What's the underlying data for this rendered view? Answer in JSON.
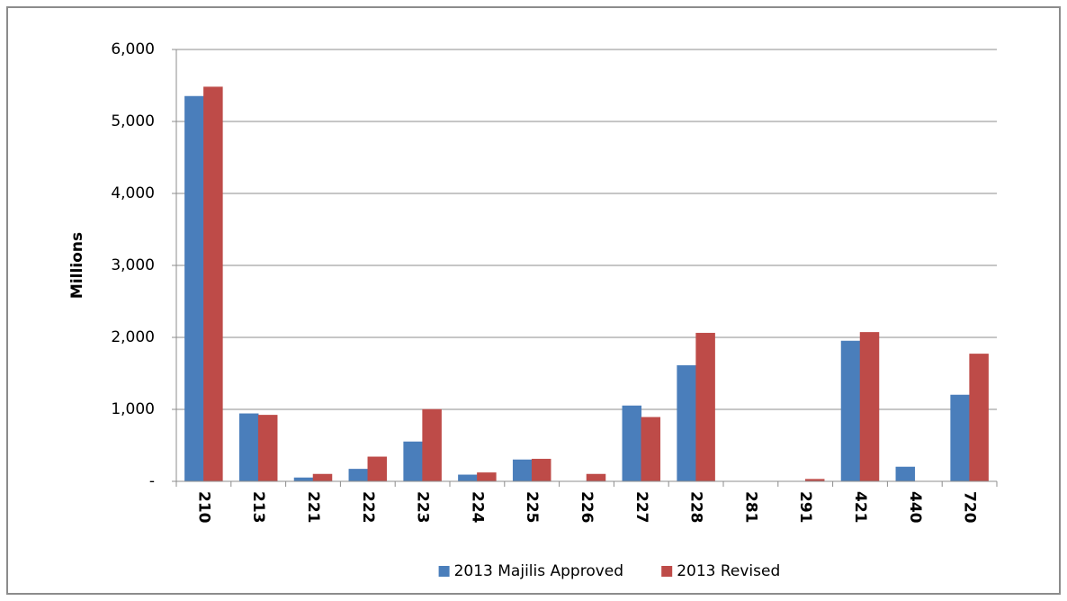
{
  "chart_data": {
    "type": "bar",
    "y_label": "Millions",
    "categories": [
      "210",
      "213",
      "221",
      "222",
      "223",
      "224",
      "225",
      "226",
      "227",
      "228",
      "281",
      "291",
      "421",
      "440",
      "720"
    ],
    "series": [
      {
        "name": "2013 Majilis Approved",
        "color": "#4a7ebb",
        "values": [
          5350,
          940,
          50,
          170,
          550,
          90,
          300,
          0,
          1050,
          1610,
          0,
          0,
          1950,
          200,
          1200
        ]
      },
      {
        "name": "2013 Revised",
        "color": "#be4b48",
        "values": [
          5480,
          920,
          100,
          340,
          1000,
          120,
          310,
          100,
          890,
          2060,
          0,
          30,
          2070,
          0,
          1770
        ]
      }
    ],
    "ylim": [
      0,
      6000
    ],
    "yticks": [
      {
        "value": 0,
        "label": "-"
      },
      {
        "value": 1000,
        "label": "1,000"
      },
      {
        "value": 2000,
        "label": "2,000"
      },
      {
        "value": 3000,
        "label": "3,000"
      },
      {
        "value": 4000,
        "label": "4,000"
      },
      {
        "value": 5000,
        "label": "5,000"
      },
      {
        "value": 6000,
        "label": "6,000"
      }
    ],
    "grid": true,
    "legend": "bottom"
  }
}
